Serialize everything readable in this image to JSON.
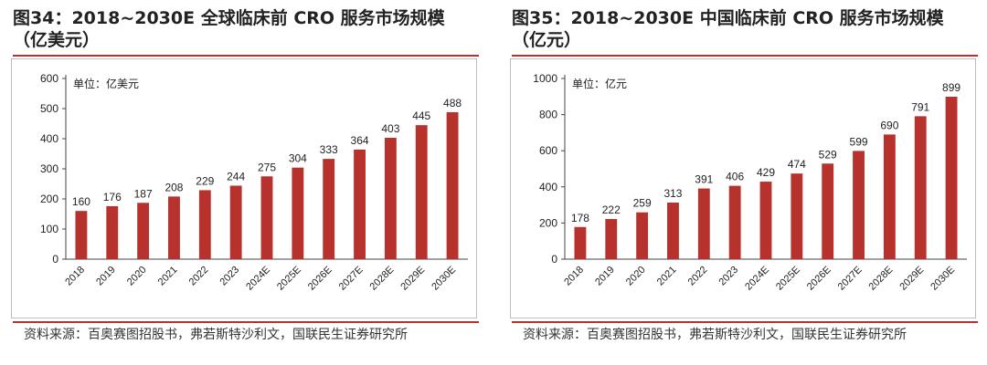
{
  "source_text": "资料来源：百奥赛图招股书，弗若斯特沙利文，国联民生证券研究所",
  "chart_data": [
    {
      "type": "bar",
      "title_line1": "图34：2018~2030E 全球临床前 CRO 服务市场规模",
      "title_line2": "（亿美元）",
      "unit_label": "单位：亿美元",
      "categories": [
        "2018",
        "2019",
        "2020",
        "2021",
        "2022",
        "2023",
        "2024E",
        "2025E",
        "2026E",
        "2027E",
        "2028E",
        "2029E",
        "2030E"
      ],
      "values": [
        160,
        176,
        187,
        208,
        229,
        244,
        275,
        304,
        333,
        364,
        403,
        445,
        488
      ],
      "yticks": [
        0,
        100,
        200,
        300,
        400,
        500,
        600
      ],
      "ylim": [
        0,
        600
      ],
      "bar_color": "#b7322c"
    },
    {
      "type": "bar",
      "title_line1": "图35：2018~2030E 中国临床前 CRO 服务市场规模",
      "title_line2": "（亿元）",
      "unit_label": "单位：亿元",
      "categories": [
        "2018",
        "2019",
        "2020",
        "2021",
        "2022",
        "2023",
        "2024E",
        "2025E",
        "2026E",
        "2027E",
        "2028E",
        "2029E",
        "2030E"
      ],
      "values": [
        178,
        222,
        259,
        313,
        391,
        406,
        429,
        474,
        529,
        599,
        690,
        791,
        899
      ],
      "yticks": [
        0,
        200,
        400,
        600,
        800,
        1000
      ],
      "ylim": [
        0,
        1000
      ],
      "bar_color": "#b7322c"
    }
  ]
}
